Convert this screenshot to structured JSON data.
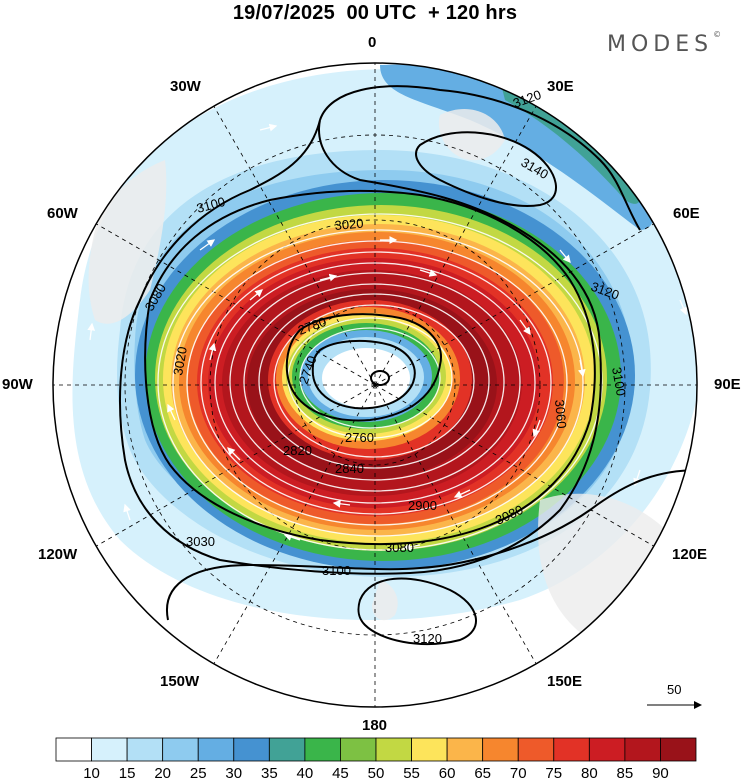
{
  "header": {
    "title": "19/07/2025  00 UTC  + 120 hrs",
    "brand": "MODES",
    "brand_mark": "©"
  },
  "map": {
    "projection": "south-polar-stereographic",
    "longitude_labels": {
      "top": "0",
      "top_left": "30W",
      "top_right": "30E",
      "upper_left": "60W",
      "upper_right": "60E",
      "left": "90W",
      "right": "90E",
      "lower_left": "120W",
      "lower_right": "120E",
      "bottom_left": "150W",
      "bottom_right": "150E",
      "bottom": "180"
    },
    "contour_labels": [
      "3120",
      "3140",
      "3100",
      "3120",
      "3020",
      "3080",
      "2780",
      "3020",
      "3060",
      "3100",
      "2740",
      "2760",
      "2820",
      "2840",
      "2900",
      "3080",
      "3080",
      "3030",
      "3100",
      "3120"
    ],
    "reference_vector": {
      "value": "50"
    }
  },
  "colorbar": {
    "colors": [
      "#ffffff",
      "#d6f1fc",
      "#b3e0f6",
      "#8ecbef",
      "#64aee3",
      "#4592d1",
      "#41a296",
      "#3ab54a",
      "#7dc143",
      "#c2d843",
      "#fde45b",
      "#fbb54a",
      "#f6862e",
      "#ee5a2a",
      "#e23226",
      "#cc1d23",
      "#b3161d",
      "#991219"
    ],
    "labels": [
      "10",
      "15",
      "20",
      "25",
      "30",
      "35",
      "40",
      "45",
      "50",
      "55",
      "60",
      "65",
      "70",
      "75",
      "80",
      "85",
      "90"
    ]
  }
}
